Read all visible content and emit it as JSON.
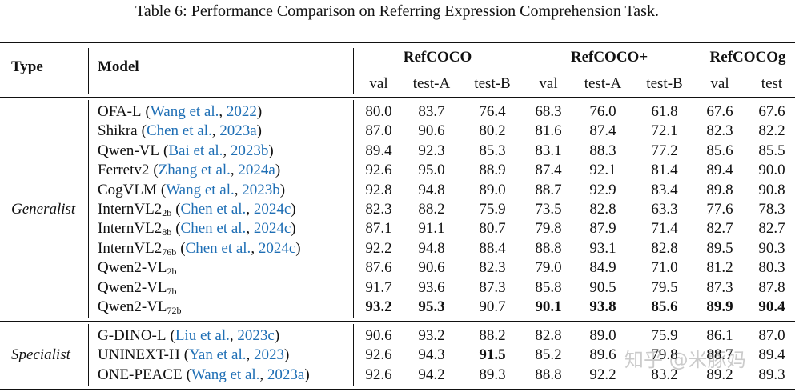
{
  "title": "Table 6: Performance Comparison on Referring Expression Comprehension Task.",
  "watermark": "知乎 @米豚妈",
  "table": {
    "header": {
      "type": "Type",
      "model": "Model",
      "groups": [
        {
          "name": "RefCOCO",
          "columns": [
            "val",
            "test-A",
            "test-B"
          ]
        },
        {
          "name": "RefCOCO+",
          "columns": [
            "val",
            "test-A",
            "test-B"
          ]
        },
        {
          "name": "RefCOCOg",
          "columns": [
            "val",
            "test"
          ]
        }
      ]
    },
    "sections": [
      {
        "label": "Generalist",
        "rows": [
          {
            "model": "OFA-L",
            "cite": [
              "(",
              "Wang et al.",
              ", ",
              "2022",
              ")"
            ],
            "values": [
              "80.0",
              "83.7",
              "76.4",
              "68.3",
              "76.0",
              "61.8",
              "67.6",
              "67.6"
            ]
          },
          {
            "model": "Shikra",
            "cite": [
              "(",
              "Chen et al.",
              ", ",
              "2023a",
              ")"
            ],
            "values": [
              "87.0",
              "90.6",
              "80.2",
              "81.6",
              "87.4",
              "72.1",
              "82.3",
              "82.2"
            ]
          },
          {
            "model": "Qwen-VL",
            "cite": [
              "(",
              "Bai et al.",
              ", ",
              "2023b",
              ")"
            ],
            "values": [
              "89.4",
              "92.3",
              "85.3",
              "83.1",
              "88.3",
              "77.2",
              "85.6",
              "85.5"
            ]
          },
          {
            "model": "Ferretv2",
            "cite": [
              "(",
              "Zhang et al.",
              ", ",
              "2024a",
              ")"
            ],
            "values": [
              "92.6",
              "95.0",
              "88.9",
              "87.4",
              "92.1",
              "81.4",
              "89.4",
              "90.0"
            ]
          },
          {
            "model": "CogVLM",
            "cite": [
              "(",
              "Wang et al.",
              ", ",
              "2023b",
              ")"
            ],
            "values": [
              "92.8",
              "94.8",
              "89.0",
              "88.7",
              "92.9",
              "83.4",
              "89.8",
              "90.8"
            ]
          },
          {
            "model": "InternVL2",
            "sub": "2b",
            "cite": [
              "(",
              "Chen et al.",
              ", ",
              "2024c",
              ")"
            ],
            "values": [
              "82.3",
              "88.2",
              "75.9",
              "73.5",
              "82.8",
              "63.3",
              "77.6",
              "78.3"
            ]
          },
          {
            "model": "InternVL2",
            "sub": "8b",
            "cite": [
              "(",
              "Chen et al.",
              ", ",
              "2024c",
              ")"
            ],
            "values": [
              "87.1",
              "91.1",
              "80.7",
              "79.8",
              "87.9",
              "71.4",
              "82.7",
              "82.7"
            ]
          },
          {
            "model": "InternVL2",
            "sub": "76b",
            "cite": [
              "(",
              "Chen et al.",
              ", ",
              "2024c",
              ")"
            ],
            "values": [
              "92.2",
              "94.8",
              "88.4",
              "88.8",
              "93.1",
              "82.8",
              "89.5",
              "90.3"
            ]
          },
          {
            "model": "Qwen2-VL",
            "sub": "2b",
            "values": [
              "87.6",
              "90.6",
              "82.3",
              "79.0",
              "84.9",
              "71.0",
              "81.2",
              "80.3"
            ]
          },
          {
            "model": "Qwen2-VL",
            "sub": "7b",
            "values": [
              "91.7",
              "93.6",
              "87.3",
              "85.8",
              "90.5",
              "79.5",
              "87.3",
              "87.8"
            ]
          },
          {
            "model": "Qwen2-VL",
            "sub": "72b",
            "values": [
              "93.2",
              "95.3",
              "90.7",
              "90.1",
              "93.8",
              "85.6",
              "89.9",
              "90.4"
            ],
            "bold": [
              0,
              1,
              3,
              4,
              5,
              6,
              7
            ]
          }
        ]
      },
      {
        "label": "Specialist",
        "rows": [
          {
            "model": "G-DINO-L",
            "cite": [
              "(",
              "Liu et al.",
              ", ",
              "2023c",
              ")"
            ],
            "values": [
              "90.6",
              "93.2",
              "88.2",
              "82.8",
              "89.0",
              "75.9",
              "86.1",
              "87.0"
            ]
          },
          {
            "model": "UNINEXT-H",
            "cite": [
              "(",
              "Yan et al.",
              ", ",
              "2023",
              ")"
            ],
            "values": [
              "92.6",
              "94.3",
              "91.5",
              "85.2",
              "89.6",
              "79.8",
              "88.7",
              "89.4"
            ],
            "bold": [
              2
            ]
          },
          {
            "model": "ONE-PEACE",
            "cite": [
              "(",
              "Wang et al.",
              ", ",
              "2023a",
              ")"
            ],
            "values": [
              "92.6",
              "94.2",
              "89.3",
              "88.8",
              "92.2",
              "83.2",
              "89.2",
              "89.3"
            ]
          }
        ]
      }
    ]
  }
}
